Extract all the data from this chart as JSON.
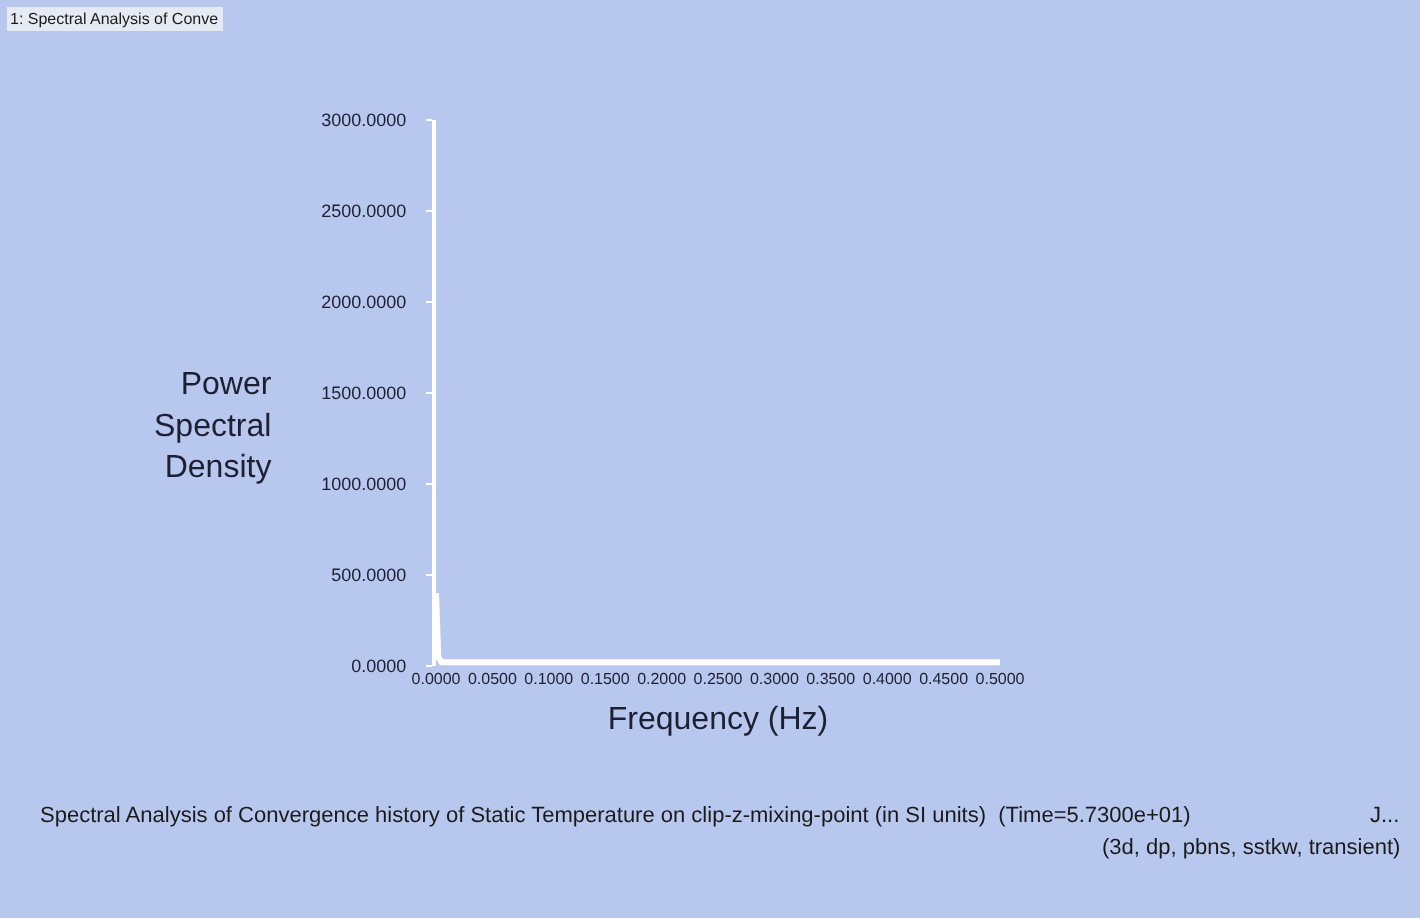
{
  "chart_data": {
    "type": "line",
    "xlabel": "Frequency (Hz)",
    "ylabel": "Power Spectral Density",
    "annotations": [
      "1: Spectral Analysis of Conve",
      "Spectral Analysis of Convergence history of Static Temperature on clip-z-mixing-point (in SI units)  (Time=5.7300e+01)",
      "J...",
      "(3d, dp, pbns, sstkw, transient)"
    ],
    "x": [
      0,
      0.002,
      0.005,
      0.01,
      0.05,
      0.1,
      0.15,
      0.2,
      0.25,
      0.3,
      0.35,
      0.4,
      0.45,
      0.5
    ],
    "values": [
      400,
      50,
      20,
      20,
      20,
      20,
      20,
      20,
      20,
      20,
      20,
      20,
      20,
      20
    ],
    "color": "#ffffff",
    "xlim": [
      0,
      0.5
    ],
    "ylim": [
      0,
      3000
    ],
    "xticks": [
      {
        "value": 0,
        "label": "0.0000"
      },
      {
        "value": 0.05,
        "label": "0.0500"
      },
      {
        "value": 0.1,
        "label": "0.1000"
      },
      {
        "value": 0.15,
        "label": "0.1500"
      },
      {
        "value": 0.2,
        "label": "0.2000"
      },
      {
        "value": 0.25,
        "label": "0.2500"
      },
      {
        "value": 0.3,
        "label": "0.3000"
      },
      {
        "value": 0.35,
        "label": "0.3500"
      },
      {
        "value": 0.4,
        "label": "0.4000"
      },
      {
        "value": 0.45,
        "label": "0.4500"
      },
      {
        "value": 0.5,
        "label": "0.5000"
      }
    ],
    "yticks": [
      {
        "value": 0,
        "label": "0.0000"
      },
      {
        "value": 500,
        "label": "500.0000"
      },
      {
        "value": 1000,
        "label": "1000.0000"
      },
      {
        "value": 1500,
        "label": "1500.0000"
      },
      {
        "value": 2000,
        "label": "2000.0000"
      },
      {
        "value": 2500,
        "label": "2500.0000"
      },
      {
        "value": 3000,
        "label": "3000.0000"
      }
    ],
    "grid": false,
    "legend": false,
    "marker": "none",
    "line_style": "solid"
  }
}
